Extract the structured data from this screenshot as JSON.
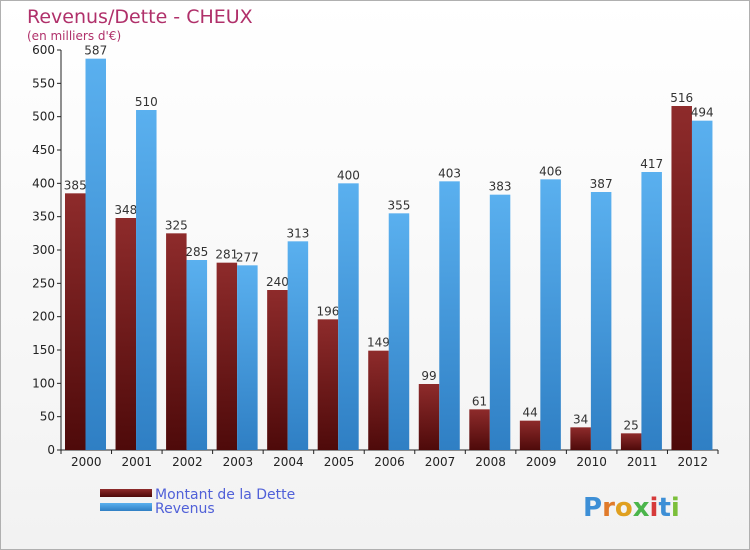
{
  "chart_data": {
    "type": "bar",
    "title": "Revenus/Dette - CHEUX",
    "subtitle": "(en milliers d'€)",
    "categories": [
      "2000",
      "2001",
      "2002",
      "2003",
      "2004",
      "2005",
      "2006",
      "2007",
      "2008",
      "2009",
      "2010",
      "2011",
      "2012"
    ],
    "series": [
      {
        "name": "Montant de la Dette",
        "color": "#7a1c1c",
        "values": [
          385,
          348,
          325,
          281,
          240,
          196,
          149,
          99,
          61,
          44,
          34,
          25,
          516
        ]
      },
      {
        "name": "Revenus",
        "color": "#4aa3e8",
        "values": [
          587,
          510,
          285,
          277,
          313,
          400,
          355,
          403,
          383,
          406,
          387,
          417,
          494
        ]
      }
    ],
    "ylim": [
      0,
      600
    ],
    "yticks": [
      0,
      50,
      100,
      150,
      200,
      250,
      300,
      350,
      400,
      450,
      500,
      550,
      600
    ],
    "grid": false,
    "legend_position": "bottom-left"
  },
  "logo": {
    "text": "Proxiti"
  }
}
